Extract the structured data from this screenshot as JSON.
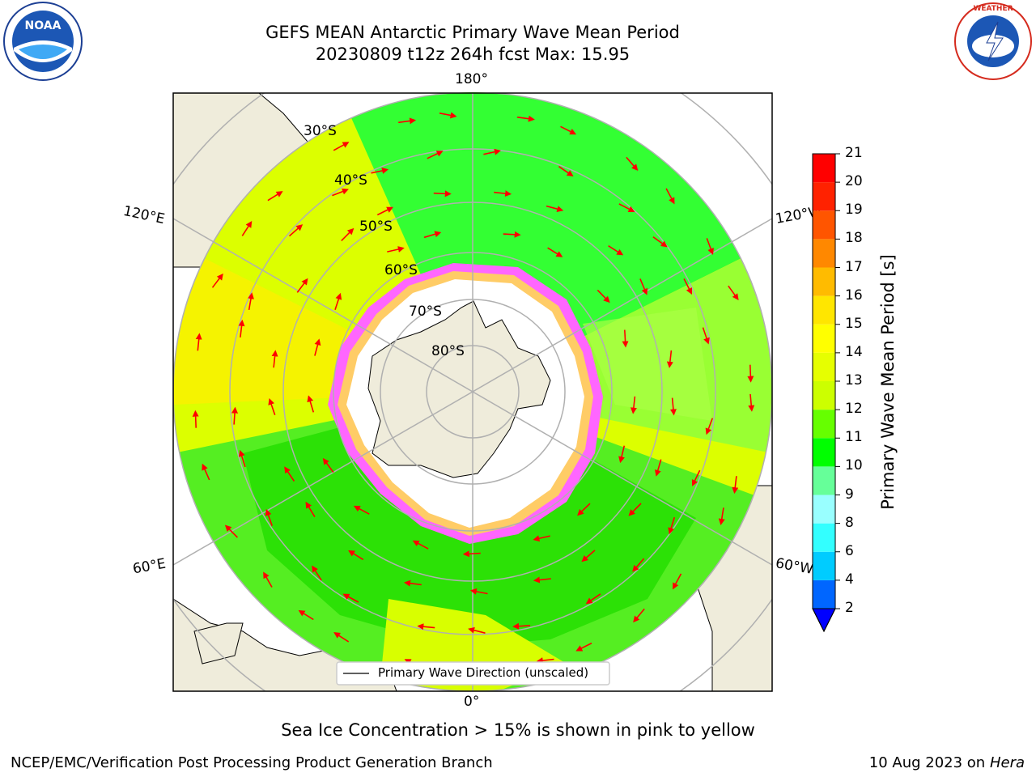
{
  "header": {
    "title_line1": "GEFS MEAN Antarctic Primary Wave Mean Period",
    "title_line2": "20230809 t12z 264h fcst   Max: 15.95"
  },
  "logos": {
    "left": "NOAA",
    "right": "NATIONAL WEATHER SERVICE"
  },
  "map": {
    "projection": "south-polar-stereographic",
    "lon_labels": [
      "180°",
      "120°E",
      "120°W",
      "60°E",
      "60°W",
      "0°"
    ],
    "lat_labels": [
      "30°S",
      "40°S",
      "50°S",
      "60°S",
      "70°S",
      "80°S"
    ],
    "legend_label": "Primary Wave Direction (unscaled)",
    "colors": {
      "land": "#efecdb",
      "ice": "#ff66ff",
      "arrow": "#ff0000",
      "grid": "#b0b0b0"
    }
  },
  "colorbar": {
    "label": "Primary Wave Mean Period [s]",
    "ticks": [
      "2",
      "4",
      "6",
      "8",
      "9",
      "10",
      "11",
      "12",
      "13",
      "14",
      "15",
      "16",
      "17",
      "18",
      "19",
      "20",
      "21"
    ],
    "colors": [
      "#0066ff",
      "#00ccff",
      "#33ffff",
      "#99ffff",
      "#66ff99",
      "#00ff00",
      "#66ff00",
      "#ccff00",
      "#e6ff00",
      "#ffff00",
      "#ffe600",
      "#ffbb00",
      "#ff8800",
      "#ff5500",
      "#ff2200",
      "#ff0000"
    ],
    "extend_color": "#0000ff"
  },
  "footer": {
    "note": "Sea Ice Concentration > 15% is shown in pink to yellow",
    "credit": "NCEP/EMC/Verification Post Processing Product Generation Branch",
    "date": "10 Aug 2023 on",
    "host": "Hera"
  }
}
